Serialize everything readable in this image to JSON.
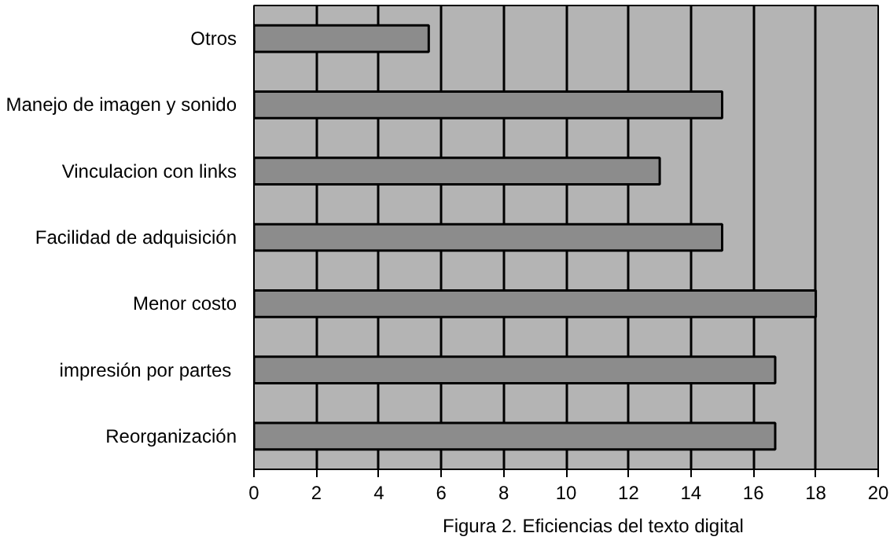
{
  "chart_data": {
    "type": "bar",
    "orientation": "horizontal",
    "categories": [
      "Otros",
      "Manejo de imagen y sonido",
      "Vinculacion con links",
      "Facilidad de adquisición",
      "Menor costo",
      "impresión  por partes",
      "Reorganización"
    ],
    "values": [
      5.6,
      15,
      13,
      15,
      18,
      16.7,
      16.7
    ],
    "color": "#8c8c8c",
    "xlim": [
      0,
      20
    ],
    "xticks": [
      0,
      2,
      4,
      6,
      8,
      10,
      12,
      14,
      16,
      18,
      20
    ],
    "grid": "x",
    "annotations": [
      "Figura 2. Eficiencias del texto digital"
    ]
  }
}
